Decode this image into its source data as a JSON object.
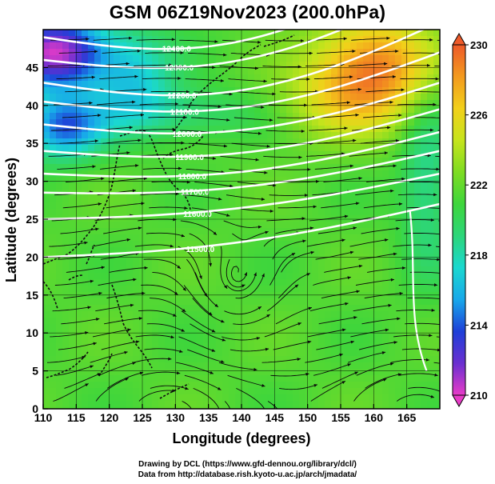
{
  "title": "GSM 06Z19Nov2023 (200.0hPa)",
  "x_axis": {
    "label": "Longitude (degrees)",
    "range": [
      110,
      170
    ],
    "ticks": [
      110,
      115,
      120,
      125,
      130,
      135,
      140,
      145,
      150,
      155,
      160,
      165
    ]
  },
  "y_axis": {
    "label": "Latitude  (degrees)",
    "range": [
      0,
      50
    ],
    "ticks": [
      0,
      5,
      10,
      15,
      20,
      25,
      30,
      35,
      40,
      45
    ]
  },
  "colorbar": {
    "min": 210,
    "max": 230,
    "tick_labels": [
      "230",
      "226",
      "222",
      "218",
      "214",
      "210"
    ],
    "colors": [
      "#e83cc8",
      "#6a2fd0",
      "#1e3fd8",
      "#18a8ea",
      "#1ad8d0",
      "#2cd67a",
      "#3ed63c",
      "#7edc22",
      "#c6e41c",
      "#f2d01a",
      "#f39a1e",
      "#ee5a2a"
    ]
  },
  "contours": {
    "color": "#ffffff",
    "labels": [
      "11500.0",
      "11600.0",
      "11700.0",
      "11800.0",
      "11900.0",
      "12000.0",
      "12100.0",
      "12200.0",
      "12300.0",
      "12400.0"
    ]
  },
  "credits": {
    "line1": "Drawing by DCL (https://www.gfd-dennou.org/library/dcl/)",
    "line2": "Data from http://database.rish.kyoto-u.ac.jp/arch/jmadata/"
  }
}
